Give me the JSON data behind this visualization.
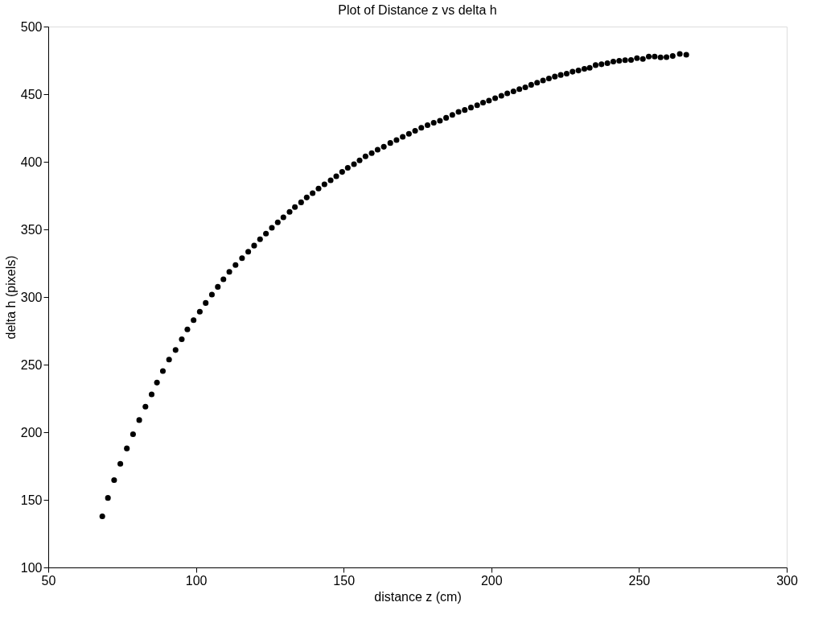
{
  "chart_data": {
    "type": "scatter",
    "title": "Plot of Distance z vs delta h",
    "xlabel": "distance z (cm)",
    "ylabel": "delta h (pixels)",
    "xlim": [
      50,
      300
    ],
    "xticks": [
      50,
      100,
      150,
      200,
      250,
      300
    ],
    "ylim": [
      100,
      500
    ],
    "yticks": [
      100,
      150,
      200,
      250,
      300,
      350,
      400,
      450,
      500
    ],
    "grid": false,
    "legend": false,
    "marker": "circle",
    "series": [
      {
        "color": "#000000",
        "x": [
          68.3,
          70.2,
          72.3,
          74.4,
          76.6,
          78.7,
          80.8,
          82.9,
          85.0,
          86.8,
          88.8,
          90.9,
          93.1,
          95.2,
          97.1,
          99.2,
          101.3,
          103.3,
          105.4,
          107.4,
          109.3,
          111.3,
          113.4,
          115.6,
          117.7,
          119.7,
          121.7,
          123.7,
          125.7,
          127.7,
          129.6,
          131.7,
          133.5,
          135.6,
          137.5,
          139.5,
          141.5,
          143.5,
          145.6,
          147.5,
          149.5,
          151.4,
          153.5,
          155.4,
          157.4,
          159.5,
          161.5,
          163.6,
          165.8,
          167.9,
          170.0,
          172.1,
          174.2,
          176.3,
          178.4,
          180.5,
          182.6,
          184.7,
          186.8,
          188.9,
          191.0,
          193.1,
          195.2,
          197.2,
          199.2,
          201.3,
          203.4,
          205.4,
          207.5,
          209.5,
          211.5,
          213.5,
          215.5,
          217.5,
          219.5,
          221.5,
          223.5,
          225.5,
          227.5,
          229.5,
          231.5,
          233.3,
          235.3,
          237.3,
          239.3,
          241.3,
          243.3,
          245.3,
          247.3,
          249.3,
          251.3,
          253.3,
          255.3,
          257.3,
          259.3,
          261.4,
          263.8,
          266.0
        ],
        "values": [
          137.8,
          151.4,
          164.6,
          176.6,
          188.0,
          198.5,
          209.0,
          218.9,
          228.0,
          236.7,
          245.2,
          253.7,
          260.8,
          268.7,
          276.0,
          282.9,
          289.1,
          295.6,
          301.8,
          307.5,
          313.1,
          318.6,
          323.7,
          328.7,
          333.5,
          338.0,
          342.7,
          346.9,
          351.2,
          355.2,
          358.9,
          362.9,
          366.5,
          370.0,
          373.6,
          376.8,
          380.2,
          383.3,
          386.3,
          389.3,
          392.5,
          395.5,
          398.2,
          401.0,
          404.0,
          406.4,
          408.9,
          411.1,
          413.9,
          416.1,
          418.5,
          420.7,
          422.9,
          425.1,
          427.1,
          428.9,
          430.4,
          432.5,
          434.7,
          436.9,
          438.3,
          440.1,
          441.8,
          443.8,
          445.2,
          447.0,
          448.8,
          450.6,
          452.1,
          453.7,
          455.1,
          456.9,
          458.5,
          460.1,
          461.6,
          463.0,
          464.2,
          465.2,
          466.6,
          467.5,
          468.7,
          469.5,
          471.5,
          472.1,
          472.9,
          474.1,
          474.7,
          475.1,
          475.3,
          476.6,
          476.0,
          477.8,
          477.8,
          477.2,
          477.4,
          478.2,
          479.8,
          479.2
        ]
      }
    ]
  }
}
